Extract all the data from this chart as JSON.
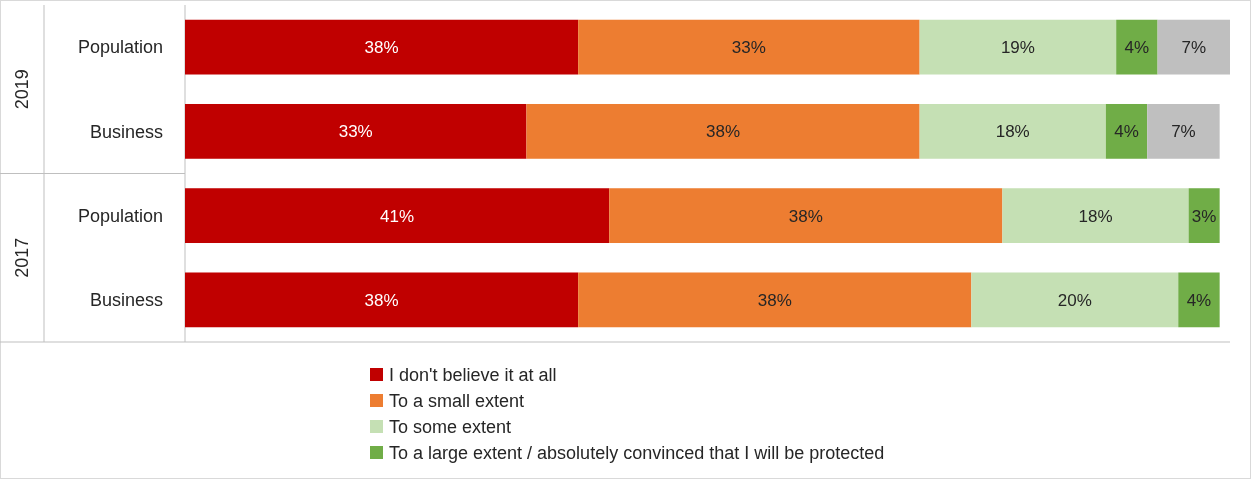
{
  "chart_data": {
    "type": "bar",
    "orientation": "horizontal",
    "stacked": true,
    "categories": [
      "Population",
      "Business",
      "Population",
      "Business"
    ],
    "series": [
      {
        "name": "I don't believe it at all",
        "color": "#c00000",
        "values": [
          38,
          33,
          41,
          38
        ],
        "value_labels": [
          "38%",
          "33%",
          "41%",
          "38%"
        ]
      },
      {
        "name": "To a small extent",
        "color": "#ed7d31",
        "values": [
          33,
          38,
          38,
          38
        ],
        "value_labels": [
          "33%",
          "38%",
          "38%",
          "38%"
        ]
      },
      {
        "name": "To some extent",
        "color": "#c5e0b4",
        "values": [
          19,
          18,
          18,
          20
        ],
        "value_labels": [
          "19%",
          "18%",
          "18%",
          "20%"
        ]
      },
      {
        "name": "To a large extent / absolutely convinced that I will be protected",
        "color": "#70ad47",
        "values": [
          4,
          4,
          3,
          4
        ],
        "value_labels": [
          "4%",
          "4%",
          "3%",
          "4%"
        ]
      },
      {
        "color": "#bfbfbf",
        "values": [
          7,
          7,
          null,
          null
        ],
        "value_labels": [
          "7%",
          "7%",
          null,
          null
        ]
      }
    ],
    "annotations": [
      "2019",
      "2017"
    ],
    "legend": "bottom"
  }
}
